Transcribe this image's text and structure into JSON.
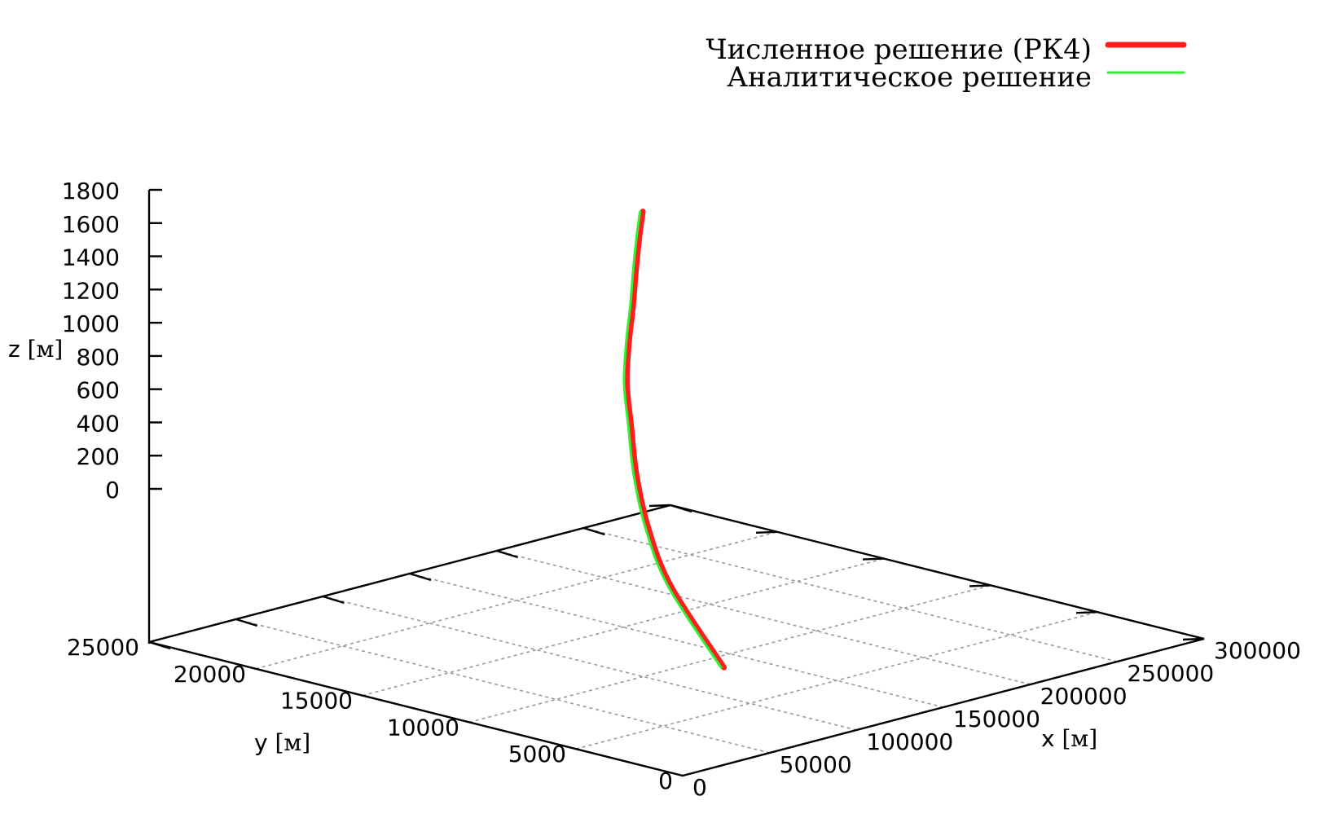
{
  "chart_data": {
    "type": "line",
    "projection": "3d",
    "grid": true,
    "legend_position": "top-right",
    "axes": {
      "x": {
        "label_main": "x",
        "label_unit": "[м]",
        "range": [
          0,
          300000
        ],
        "ticks": [
          "0",
          "50000",
          "100000",
          "150000",
          "200000",
          "250000",
          "300000"
        ]
      },
      "y": {
        "label_main": "y",
        "label_unit": "[м]",
        "range": [
          0,
          25000
        ],
        "ticks": [
          "0",
          "5000",
          "10000",
          "15000",
          "20000",
          "25000"
        ]
      },
      "z": {
        "label_main": "z",
        "label_unit": "[м]",
        "range": [
          0,
          1800
        ],
        "ticks": [
          "0",
          "200",
          "400",
          "600",
          "800",
          "1000",
          "1200",
          "1400",
          "1600",
          "1800"
        ]
      }
    },
    "series": [
      {
        "name": "Численное решение (РК4)",
        "color": "#ff1e1e",
        "style": "thick",
        "x": [
          133000,
          148000,
          162000,
          176000,
          189000,
          200000,
          211000,
          222000,
          231000,
          239000,
          246000
        ],
        "y": [
          8900,
          12600,
          14800,
          16500,
          17800,
          18900,
          19700,
          20400,
          21000,
          21500,
          21900
        ],
        "z": [
          0,
          300,
          520,
          730,
          920,
          1100,
          1270,
          1430,
          1580,
          1720,
          1840
        ]
      },
      {
        "name": "Аналитическое решение",
        "color": "#33ee33",
        "style": "thin",
        "x": [
          132000,
          147000,
          161000,
          175000,
          188000,
          199000,
          210000,
          221000,
          230000,
          238000,
          245000
        ],
        "y": [
          8950,
          12650,
          14850,
          16550,
          17850,
          18950,
          19750,
          20450,
          21050,
          21550,
          21950
        ],
        "z": [
          0,
          300,
          520,
          730,
          920,
          1100,
          1270,
          1430,
          1580,
          1720,
          1840
        ]
      }
    ]
  }
}
